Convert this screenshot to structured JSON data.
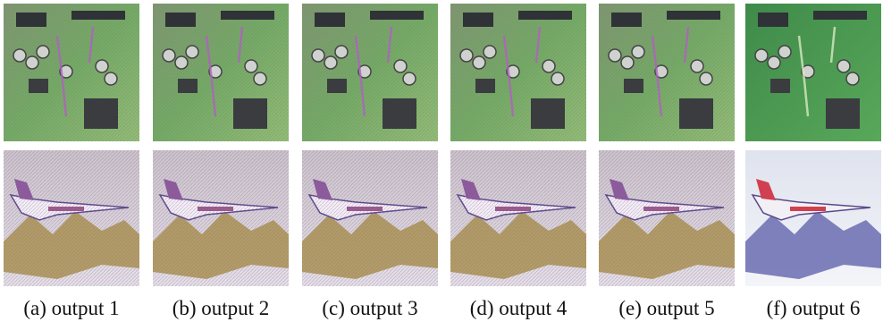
{
  "figure": {
    "panels": [
      {
        "caption": "(a) output 1"
      },
      {
        "caption": "(b) output 2"
      },
      {
        "caption": "(c) output 3"
      },
      {
        "caption": "(d) output 4"
      },
      {
        "caption": "(e) output 5"
      },
      {
        "caption": "(f) output 6"
      }
    ]
  }
}
